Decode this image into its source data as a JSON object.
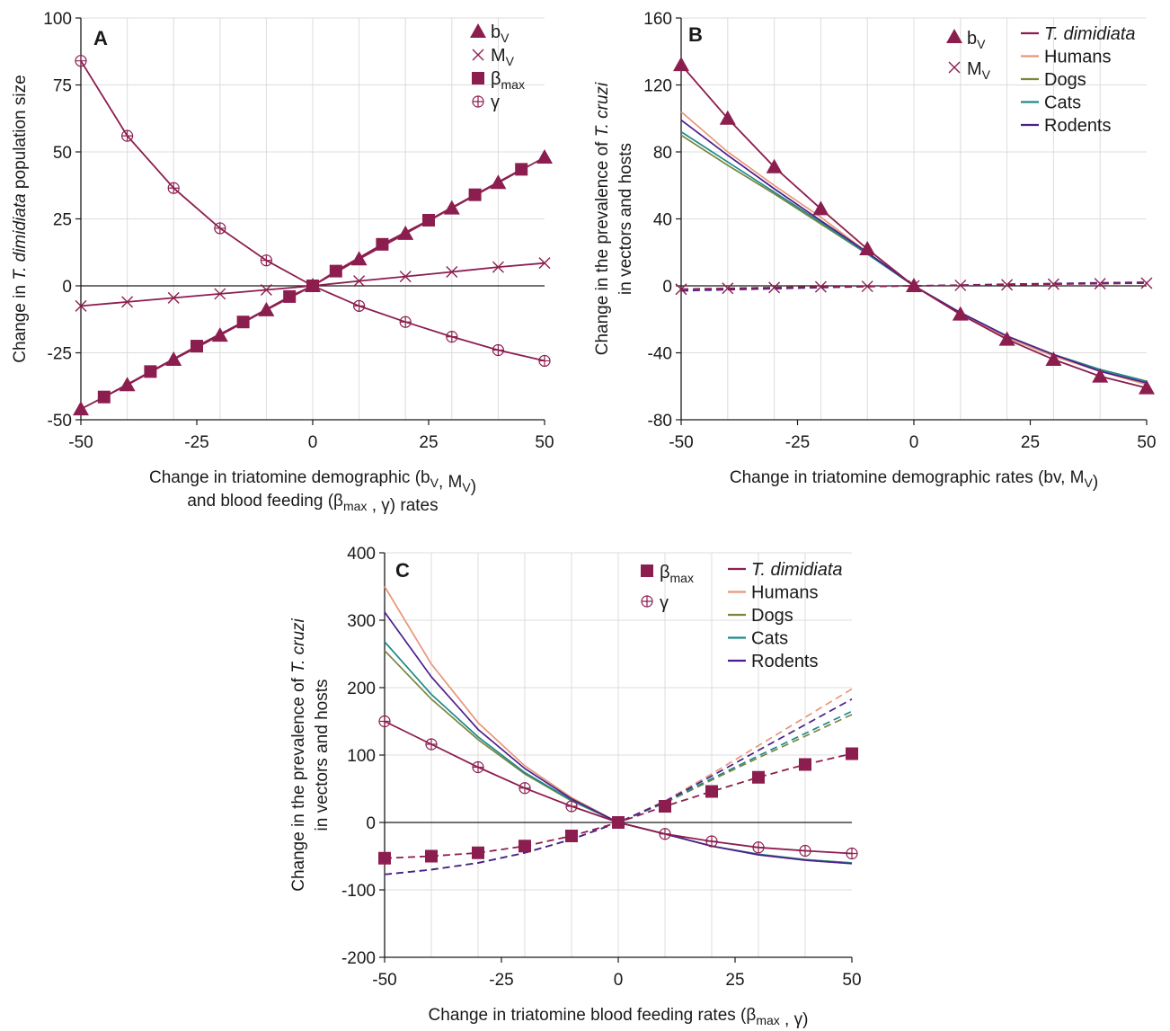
{
  "colors": {
    "vector": "#8c1e4f",
    "humans": "#e8967a",
    "dogs": "#7a8540",
    "cats": "#1f8a8a",
    "rodents": "#4b1f8c",
    "axis": "#1a1a1a",
    "grid": "#dcdcdc"
  },
  "chart_data": [
    {
      "panel": "A",
      "type": "line",
      "xlabel": [
        "Change in triatomine demographic (bV, MV)",
        "and blood feeding (βmax , γ) rates"
      ],
      "ylabel": "Change in T. dimidiata population size",
      "xlim": [
        -50,
        50
      ],
      "ylim": [
        -50,
        100
      ],
      "xticks": [
        -50,
        -25,
        0,
        25,
        50
      ],
      "yticks": [
        -50,
        -25,
        0,
        25,
        50,
        75,
        100
      ],
      "grid": true,
      "legend_position": "top-right",
      "legend": [
        "bV",
        "MV",
        "βmax",
        "γ"
      ],
      "series": [
        {
          "name": "bV",
          "marker": "triangle",
          "color": "vector",
          "dashed": false,
          "x": [
            -50,
            -40,
            -30,
            -20,
            -10,
            0,
            10,
            20,
            30,
            40,
            50
          ],
          "y": [
            -46,
            -37,
            -27.5,
            -18.5,
            -9,
            0,
            10,
            19.5,
            29,
            38.5,
            48
          ]
        },
        {
          "name": "MV",
          "marker": "cross",
          "color": "vector",
          "dashed": false,
          "x": [
            -50,
            -40,
            -30,
            -20,
            -10,
            0,
            10,
            20,
            30,
            40,
            50
          ],
          "y": [
            -7.5,
            -6,
            -4.5,
            -3,
            -1.5,
            0,
            1.8,
            3.5,
            5.2,
            7,
            8.5
          ]
        },
        {
          "name": "βmax",
          "marker": "square",
          "color": "vector",
          "dashed": false,
          "x": [
            -45,
            -35,
            -25,
            -15,
            -5,
            0,
            5,
            15,
            25,
            35,
            45
          ],
          "y": [
            -41.5,
            -32,
            -22.5,
            -13.5,
            -4,
            0,
            5.5,
            15.5,
            24.5,
            34,
            43.5
          ]
        },
        {
          "name": "γ",
          "marker": "circle-plus",
          "color": "vector",
          "dashed": false,
          "x": [
            -50,
            -40,
            -30,
            -20,
            -10,
            0,
            10,
            20,
            30,
            40,
            50
          ],
          "y": [
            84,
            56,
            36.5,
            21.5,
            9.5,
            0,
            -7.5,
            -13.5,
            -19,
            -24,
            -28
          ]
        }
      ]
    },
    {
      "panel": "B",
      "type": "line",
      "xlabel": [
        "Change in triatomine demographic rates (bv, MV)"
      ],
      "ylabel": [
        "Change in the prevalence of T. cruzi",
        "in vectors and hosts"
      ],
      "xlim": [
        -50,
        50
      ],
      "ylim": [
        -80,
        160
      ],
      "xticks": [
        -50,
        -25,
        0,
        25,
        50
      ],
      "yticks": [
        -80,
        -40,
        0,
        40,
        80,
        120,
        160
      ],
      "grid": true,
      "legend_position": "top-right",
      "legend_markers": [
        "bV",
        "MV"
      ],
      "legend_lines": [
        "T. dimidiata",
        "Humans",
        "Dogs",
        "Cats",
        "Rodents"
      ],
      "series": [
        {
          "name": "Humans (bV)",
          "color": "humans",
          "dashed": false,
          "marker": "none",
          "x": [
            -50,
            -40,
            -30,
            -20,
            -10,
            0,
            10,
            20,
            30,
            40,
            50
          ],
          "y": [
            104,
            80,
            60,
            41,
            20,
            0,
            -17,
            -31,
            -42,
            -51,
            -59
          ]
        },
        {
          "name": "Dogs (bV)",
          "color": "dogs",
          "dashed": false,
          "marker": "none",
          "x": [
            -50,
            -40,
            -30,
            -20,
            -10,
            0,
            10,
            20,
            30,
            40,
            50
          ],
          "y": [
            90,
            72,
            55,
            37,
            19,
            0,
            -16,
            -30,
            -41,
            -50,
            -57
          ]
        },
        {
          "name": "Cats (bV)",
          "color": "cats",
          "dashed": false,
          "marker": "none",
          "x": [
            -50,
            -40,
            -30,
            -20,
            -10,
            0,
            10,
            20,
            30,
            40,
            50
          ],
          "y": [
            92,
            74,
            56,
            38,
            19,
            0,
            -16,
            -30,
            -41,
            -50,
            -57
          ]
        },
        {
          "name": "Rodents (bV)",
          "color": "rodents",
          "dashed": false,
          "marker": "none",
          "x": [
            -50,
            -40,
            -30,
            -20,
            -10,
            0,
            10,
            20,
            30,
            40,
            50
          ],
          "y": [
            99,
            78,
            58,
            39,
            20,
            0,
            -16,
            -30,
            -41,
            -51,
            -58
          ]
        },
        {
          "name": "T. dimidiata (bV)",
          "color": "vector",
          "dashed": false,
          "marker": "triangle",
          "x": [
            -50,
            -40,
            -30,
            -20,
            -10,
            0,
            10,
            20,
            30,
            40,
            50
          ],
          "y": [
            132,
            100,
            71,
            46,
            22,
            0,
            -17,
            -32,
            -44,
            -54,
            -61
          ]
        },
        {
          "name": "Hosts (MV)",
          "color": "rodents",
          "dashed": true,
          "marker": "none",
          "x": [
            -50,
            -40,
            -30,
            -20,
            -10,
            0,
            10,
            20,
            30,
            40,
            50
          ],
          "y": [
            -3,
            -2.3,
            -1.7,
            -1.1,
            -0.5,
            0,
            0.5,
            1,
            1.4,
            1.8,
            2.2
          ]
        },
        {
          "name": "T. dimidiata (MV)",
          "color": "vector",
          "dashed": true,
          "marker": "cross",
          "x": [
            -50,
            -40,
            -30,
            -20,
            -10,
            0,
            10,
            20,
            30,
            40,
            50
          ],
          "y": [
            -2,
            -1.5,
            -1,
            -0.6,
            -0.3,
            0,
            0.3,
            0.6,
            1,
            1.3,
            1.6
          ]
        }
      ]
    },
    {
      "panel": "C",
      "type": "line",
      "xlabel": [
        "Change in triatomine blood feeding rates (βmax , γ)"
      ],
      "ylabel": [
        "Change in the prevalence of T. cruzi",
        "in vectors and hosts"
      ],
      "xlim": [
        -50,
        50
      ],
      "ylim": [
        -200,
        400
      ],
      "xticks": [
        -50,
        -25,
        0,
        25,
        50
      ],
      "yticks": [
        -200,
        -100,
        0,
        100,
        200,
        300,
        400
      ],
      "grid": true,
      "legend_position": "top-right",
      "legend_markers": [
        "βmax",
        "γ"
      ],
      "legend_lines": [
        "T. dimidiata",
        "Humans",
        "Dogs",
        "Cats",
        "Rodents"
      ],
      "series": [
        {
          "name": "Humans (γ)",
          "color": "humans",
          "dashed": false,
          "marker": "none",
          "x": [
            -50,
            -40,
            -30,
            -20,
            -10,
            0,
            10,
            20,
            30,
            40,
            50
          ],
          "y": [
            350,
            235,
            148,
            84,
            37,
            0,
            -17,
            -35,
            -48,
            -56,
            -61
          ]
        },
        {
          "name": "Dogs (γ)",
          "color": "dogs",
          "dashed": false,
          "marker": "none",
          "x": [
            -50,
            -40,
            -30,
            -20,
            -10,
            0,
            10,
            20,
            30,
            40,
            50
          ],
          "y": [
            255,
            183,
            123,
            72,
            32,
            0,
            -17,
            -35,
            -47,
            -55,
            -60
          ]
        },
        {
          "name": "Cats (γ)",
          "color": "cats",
          "dashed": false,
          "marker": "none",
          "x": [
            -50,
            -40,
            -30,
            -20,
            -10,
            0,
            10,
            20,
            30,
            40,
            50
          ],
          "y": [
            268,
            190,
            127,
            74,
            33,
            0,
            -17,
            -35,
            -47,
            -55,
            -60
          ]
        },
        {
          "name": "Rodents (γ)",
          "color": "rodents",
          "dashed": false,
          "marker": "none",
          "x": [
            -50,
            -40,
            -30,
            -20,
            -10,
            0,
            10,
            20,
            30,
            40,
            50
          ],
          "y": [
            312,
            216,
            138,
            80,
            35,
            0,
            -17,
            -35,
            -48,
            -56,
            -61
          ]
        },
        {
          "name": "T. dimidiata (γ)",
          "color": "vector",
          "dashed": false,
          "marker": "circle-plus",
          "x": [
            -50,
            -40,
            -30,
            -20,
            -10,
            0,
            10,
            20,
            30,
            40,
            50
          ],
          "y": [
            150,
            116,
            82,
            51,
            24,
            0,
            -17,
            -28,
            -37,
            -42,
            -46
          ]
        },
        {
          "name": "Humans (βmax)",
          "color": "humans",
          "dashed": true,
          "marker": "none",
          "x": [
            -50,
            -40,
            -30,
            -20,
            -10,
            0,
            10,
            20,
            30,
            40,
            50
          ],
          "y": [
            -77,
            -70,
            -60,
            -45,
            -25,
            0,
            32,
            72,
            114,
            156,
            198
          ]
        },
        {
          "name": "Dogs (βmax)",
          "color": "dogs",
          "dashed": true,
          "marker": "none",
          "x": [
            -50,
            -40,
            -30,
            -20,
            -10,
            0,
            10,
            20,
            30,
            40,
            50
          ],
          "y": [
            -77,
            -70,
            -60,
            -45,
            -25,
            0,
            29,
            63,
            96,
            128,
            160
          ]
        },
        {
          "name": "Cats (βmax)",
          "color": "cats",
          "dashed": true,
          "marker": "none",
          "x": [
            -50,
            -40,
            -30,
            -20,
            -10,
            0,
            10,
            20,
            30,
            40,
            50
          ],
          "y": [
            -77,
            -70,
            -60,
            -45,
            -25,
            0,
            30,
            65,
            99,
            132,
            165
          ]
        },
        {
          "name": "Rodents (βmax)",
          "color": "rodents",
          "dashed": true,
          "marker": "none",
          "x": [
            -50,
            -40,
            -30,
            -20,
            -10,
            0,
            10,
            20,
            30,
            40,
            50
          ],
          "y": [
            -77,
            -70,
            -60,
            -45,
            -25,
            0,
            31,
            69,
            107,
            145,
            183
          ]
        },
        {
          "name": "T. dimidiata (βmax)",
          "color": "vector",
          "dashed": true,
          "marker": "square",
          "x": [
            -50,
            -40,
            -30,
            -20,
            -10,
            0,
            10,
            20,
            30,
            40,
            50
          ],
          "y": [
            -53,
            -50,
            -45,
            -35,
            -20,
            0,
            24,
            46,
            67,
            86,
            102
          ]
        }
      ]
    }
  ]
}
